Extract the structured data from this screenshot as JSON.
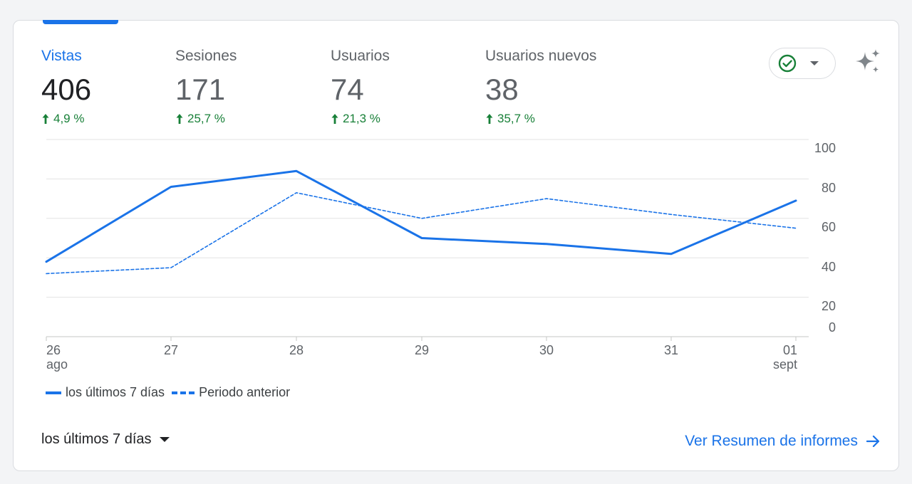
{
  "metrics": [
    {
      "label": "Vistas",
      "value": "406",
      "delta": "4,9 %",
      "active": true
    },
    {
      "label": "Sesiones",
      "value": "171",
      "delta": "25,7 %",
      "active": false
    },
    {
      "label": "Usuarios",
      "value": "74",
      "delta": "21,3 %",
      "active": false
    },
    {
      "label": "Usuarios nuevos",
      "value": "38",
      "delta": "35,7 %",
      "active": false
    }
  ],
  "icons": {
    "status": "check-circle-icon",
    "dropdown": "caret-down-icon",
    "insights": "sparkle-icon",
    "delta": "arrow-up-icon",
    "link": "arrow-right-icon"
  },
  "colors": {
    "accent": "#1a73e8",
    "positive": "#188038",
    "text": "#202124",
    "muted": "#5f6368"
  },
  "chart_data": {
    "type": "line",
    "x": [
      "26",
      "27",
      "28",
      "29",
      "30",
      "31",
      "01"
    ],
    "x_sublabels": [
      "ago",
      "",
      "",
      "",
      "",
      "",
      "sept"
    ],
    "series": [
      {
        "name": "los últimos 7 días",
        "values": [
          38,
          76,
          84,
          50,
          47,
          42,
          69
        ],
        "style": "solid"
      },
      {
        "name": "Periodo anterior",
        "values": [
          32,
          35,
          73,
          60,
          70,
          62,
          55
        ],
        "style": "dashed"
      }
    ],
    "yticks": [
      0,
      20,
      40,
      60,
      80,
      100
    ],
    "ylim": [
      0,
      100
    ],
    "ylabel": "",
    "xlabel": "",
    "grid": true,
    "yaxis_position": "right",
    "legend_position": "bottom-left"
  },
  "footer": {
    "range_label": "los últimos 7 días",
    "report_link": "Ver Resumen de informes"
  }
}
